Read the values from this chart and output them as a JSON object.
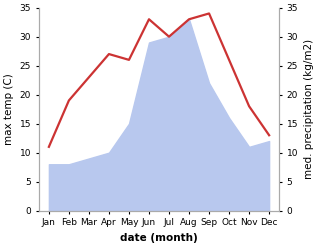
{
  "months": [
    "Jan",
    "Feb",
    "Mar",
    "Apr",
    "May",
    "Jun",
    "Jul",
    "Aug",
    "Sep",
    "Oct",
    "Nov",
    "Dec"
  ],
  "temperature": [
    11,
    19,
    23,
    27,
    26,
    33,
    30,
    33,
    34,
    26,
    18,
    13
  ],
  "precipitation": [
    8,
    8,
    9,
    10,
    15,
    29,
    30,
    33,
    22,
    16,
    11,
    12
  ],
  "temp_color": "#cc3333",
  "precip_color": "#b8c8ee",
  "bg_color": "#ffffff",
  "left_ylabel": "max temp (C)",
  "right_ylabel": "med. precipitation (kg/m2)",
  "xlabel": "date (month)",
  "ylim_left": [
    0,
    35
  ],
  "ylim_right": [
    0,
    35
  ],
  "yticks": [
    0,
    5,
    10,
    15,
    20,
    25,
    30,
    35
  ],
  "temp_linewidth": 1.6,
  "label_fontsize": 7.5,
  "tick_fontsize": 6.5
}
